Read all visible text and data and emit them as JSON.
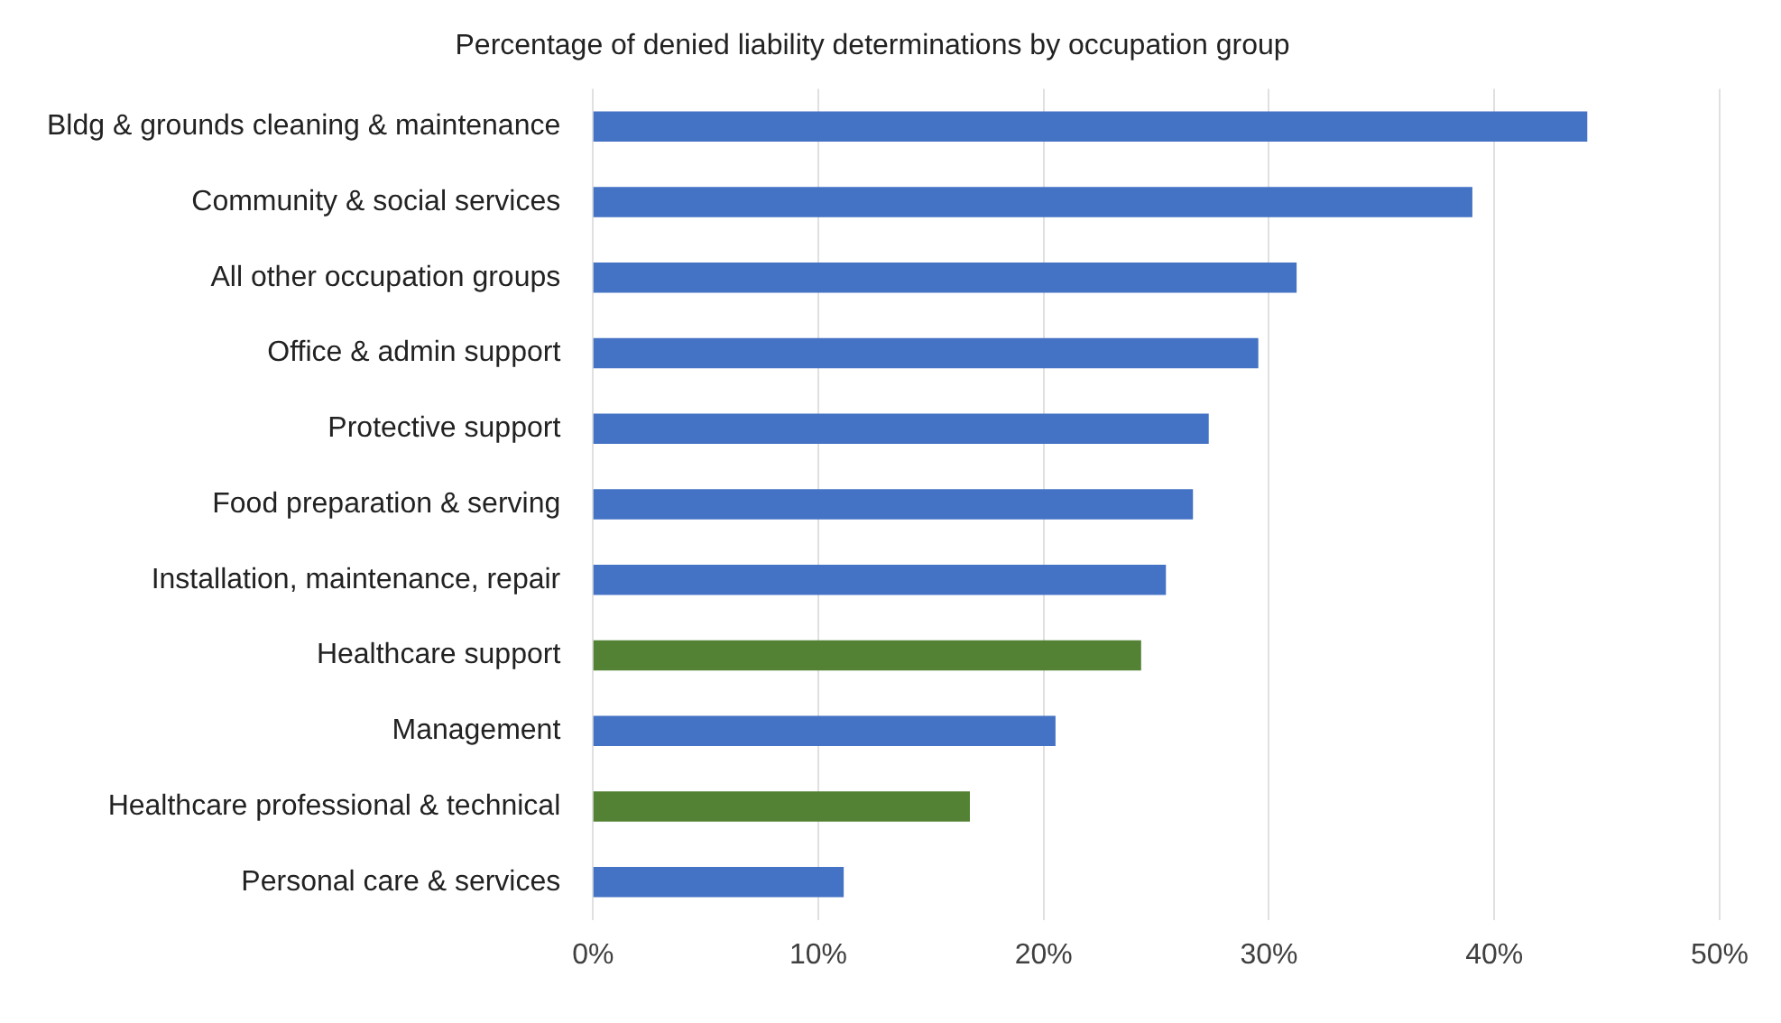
{
  "chart_data": {
    "type": "bar",
    "orientation": "horizontal",
    "title": "Percentage of denied liability determinations by occupation group",
    "categories": [
      "Bldg & grounds cleaning & maintenance",
      "Community & social services",
      "All other occupation groups",
      "Office & admin support",
      "Protective support",
      "Food preparation & serving",
      "Installation, maintenance, repair",
      "Healthcare support",
      "Management",
      "Healthcare professional & technical",
      "Personal care & services"
    ],
    "values": [
      44.1,
      39.0,
      31.2,
      29.5,
      27.3,
      26.6,
      25.4,
      24.3,
      20.5,
      16.7,
      11.1
    ],
    "colors": [
      "#4472c4",
      "#4472c4",
      "#4472c4",
      "#4472c4",
      "#4472c4",
      "#4472c4",
      "#4472c4",
      "#548235",
      "#4472c4",
      "#548235",
      "#4472c4"
    ],
    "xlim": [
      0,
      50
    ],
    "xticks": [
      {
        "value": 0,
        "label": "0%"
      },
      {
        "value": 10,
        "label": "10%"
      },
      {
        "value": 20,
        "label": "20%"
      },
      {
        "value": 30,
        "label": "30%"
      },
      {
        "value": 40,
        "label": "40%"
      },
      {
        "value": 50,
        "label": "50%"
      }
    ],
    "grid": "x",
    "legend": false
  }
}
